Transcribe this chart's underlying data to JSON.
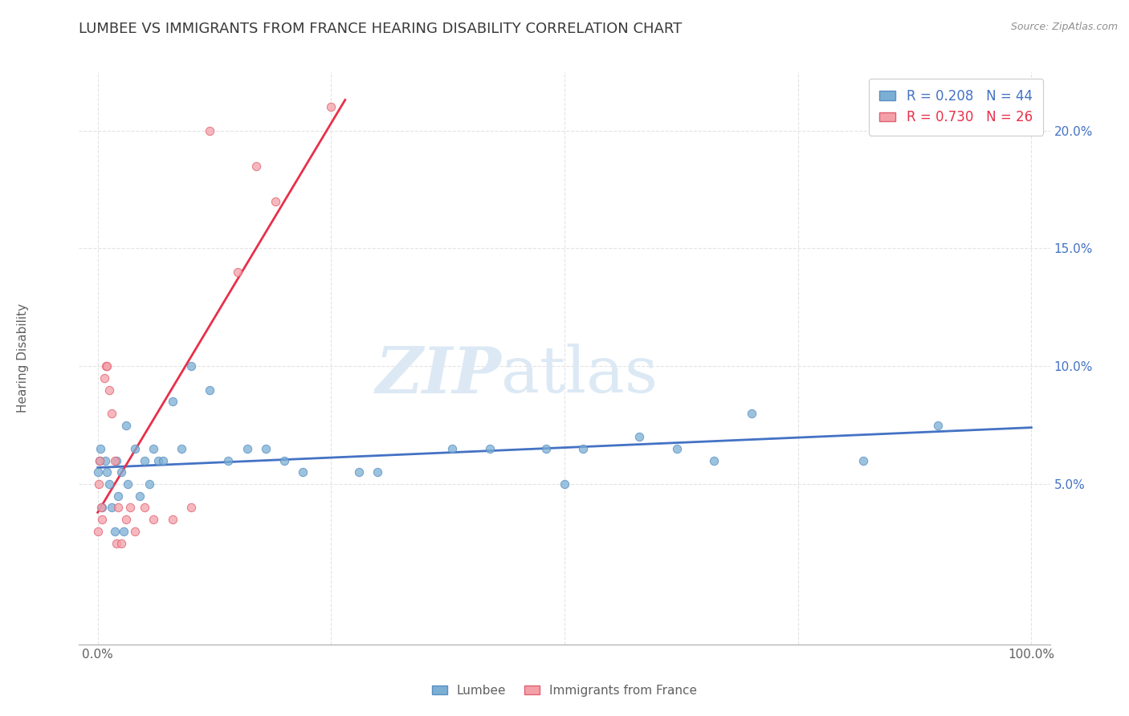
{
  "title": "LUMBEE VS IMMIGRANTS FROM FRANCE HEARING DISABILITY CORRELATION CHART",
  "source": "Source: ZipAtlas.com",
  "ylabel": "Hearing Disability",
  "xlim": [
    -0.02,
    1.02
  ],
  "ylim": [
    -0.018,
    0.225
  ],
  "lumbee_color": "#7bafd4",
  "lumbee_edge": "#5b8fc4",
  "france_color": "#f4a0a8",
  "france_edge": "#e06070",
  "lumbee_line_color": "#4472c4",
  "france_line_color": "#e8304a",
  "lumbee_R": 0.208,
  "lumbee_N": 44,
  "france_R": 0.73,
  "france_N": 26,
  "lumbee_scatter_x": [
    0.0,
    0.002,
    0.003,
    0.005,
    0.008,
    0.01,
    0.012,
    0.015,
    0.018,
    0.02,
    0.022,
    0.025,
    0.028,
    0.03,
    0.032,
    0.04,
    0.045,
    0.05,
    0.055,
    0.06,
    0.065,
    0.07,
    0.08,
    0.09,
    0.1,
    0.12,
    0.14,
    0.16,
    0.18,
    0.2,
    0.22,
    0.28,
    0.3,
    0.38,
    0.42,
    0.48,
    0.5,
    0.52,
    0.58,
    0.62,
    0.66,
    0.7,
    0.82,
    0.9
  ],
  "lumbee_scatter_y": [
    0.055,
    0.06,
    0.065,
    0.04,
    0.06,
    0.055,
    0.05,
    0.04,
    0.03,
    0.06,
    0.045,
    0.055,
    0.03,
    0.075,
    0.05,
    0.065,
    0.045,
    0.06,
    0.05,
    0.065,
    0.06,
    0.06,
    0.085,
    0.065,
    0.1,
    0.09,
    0.06,
    0.065,
    0.065,
    0.06,
    0.055,
    0.055,
    0.055,
    0.065,
    0.065,
    0.065,
    0.05,
    0.065,
    0.07,
    0.065,
    0.06,
    0.08,
    0.06,
    0.075
  ],
  "france_scatter_x": [
    0.0,
    0.001,
    0.002,
    0.004,
    0.005,
    0.007,
    0.009,
    0.01,
    0.012,
    0.015,
    0.018,
    0.02,
    0.022,
    0.025,
    0.03,
    0.035,
    0.04,
    0.05,
    0.06,
    0.08,
    0.1,
    0.12,
    0.15,
    0.17,
    0.19,
    0.25
  ],
  "france_scatter_y": [
    0.03,
    0.05,
    0.06,
    0.04,
    0.035,
    0.095,
    0.1,
    0.1,
    0.09,
    0.08,
    0.06,
    0.025,
    0.04,
    0.025,
    0.035,
    0.04,
    0.03,
    0.04,
    0.035,
    0.035,
    0.04,
    0.2,
    0.14,
    0.185,
    0.17,
    0.21
  ],
  "lumbee_trend": [
    0.0,
    1.0,
    0.057,
    0.074
  ],
  "france_trend": [
    0.0,
    0.265,
    0.038,
    0.213
  ],
  "watermark_zip": "ZIP",
  "watermark_atlas": "atlas",
  "watermark_color": "#dce9f5",
  "background_color": "#ffffff",
  "grid_color": "#dddddd",
  "title_color": "#3a3a3a",
  "title_fontsize": 13,
  "legend_fontsize": 12,
  "axis_color": "#606060",
  "right_tick_color": "#4472c4"
}
